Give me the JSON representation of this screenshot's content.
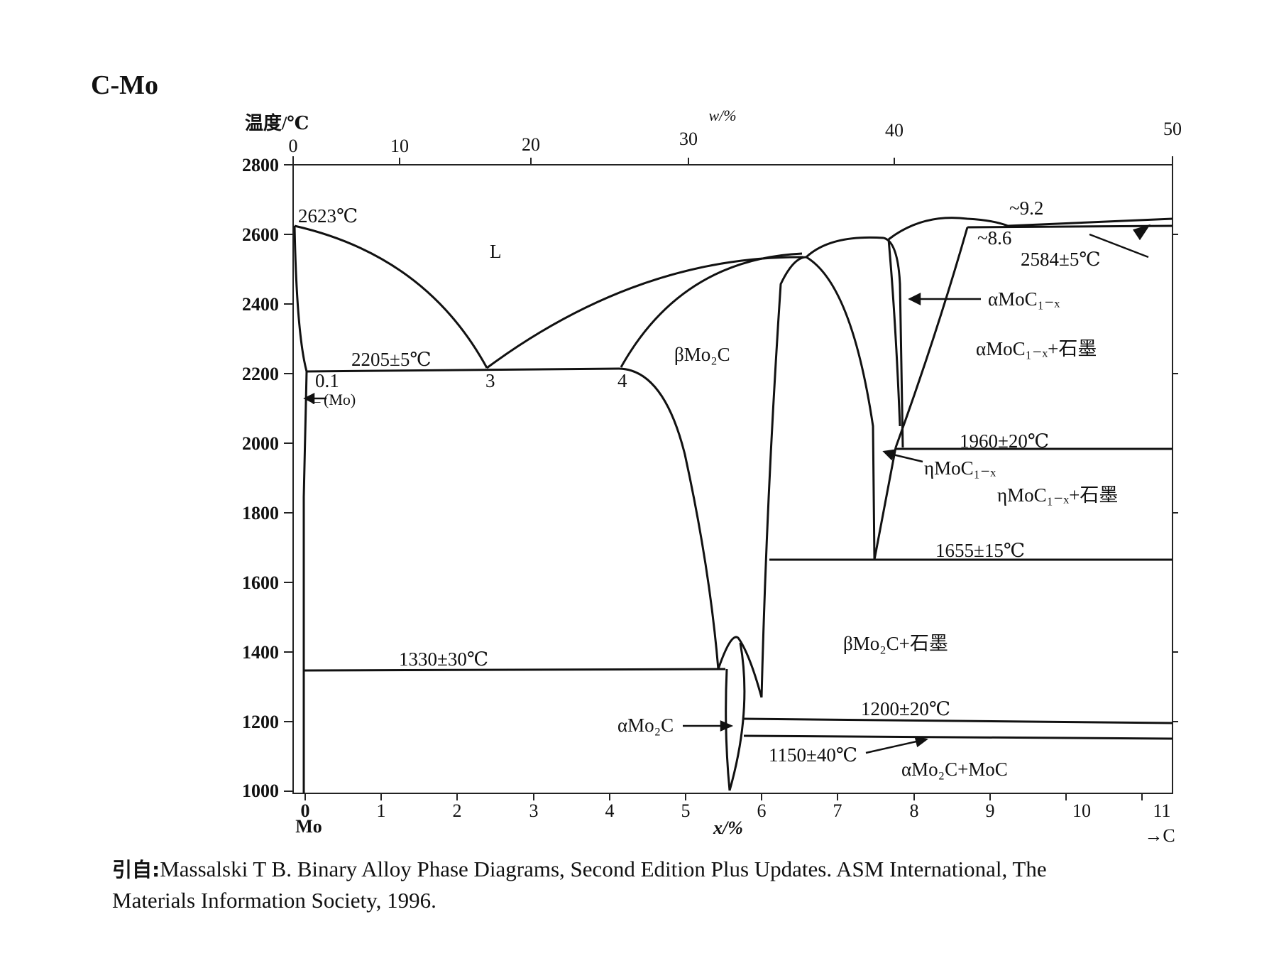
{
  "title": "C-Mo",
  "axes": {
    "y_label": "温度/℃",
    "y_ticks": [
      "2800",
      "2600",
      "2400",
      "2200",
      "2000",
      "1800",
      "1600",
      "1400",
      "1200",
      "1000"
    ],
    "top_label": "w/%",
    "top_ticks": [
      "0",
      "10",
      "20",
      "30",
      "40",
      "50"
    ],
    "bottom_label": "x/%",
    "bottom_ticks": [
      "0",
      "1",
      "2",
      "3",
      "4",
      "5",
      "6",
      "7",
      "8",
      "9",
      "10",
      "11"
    ],
    "left_element": "Mo",
    "right_element": "→C"
  },
  "annotations": {
    "mo_melting": "2623℃",
    "liquid": "L",
    "eutectic_1": "2205±5℃",
    "point_01": "0.1",
    "point_3": "3",
    "point_4": "4",
    "mo_phase": "←(Mo)",
    "beta_mo2c": "βMo₂C",
    "approx_92": "~9.2",
    "approx_86": "~8.6",
    "temp_2584": "2584±5℃",
    "alpha_moc": "αMoC₁₋ₓ",
    "alpha_moc_graphite": "αMoC₁₋ₓ+石墨",
    "temp_1960": "1960±20℃",
    "eta_moc": "ηMoC₁₋ₓ",
    "eta_moc_graphite": "ηMoC₁₋ₓ+石墨",
    "temp_1655": "1655±15℃",
    "beta_mo2c_graphite": "βMo₂C+石墨",
    "temp_1330": "1330±30℃",
    "temp_1200": "1200±20℃",
    "alpha_mo2c": "αMo₂C",
    "temp_1150": "1150±40℃",
    "alpha_mo2c_moc": "αMo₂C+MoC"
  },
  "source": {
    "prefix": "引自:",
    "line1": "Massalski T B. Binary Alloy Phase Diagrams, Second Edition Plus Updates. ASM International, The",
    "line2": "Materials Information Society, 1996."
  }
}
